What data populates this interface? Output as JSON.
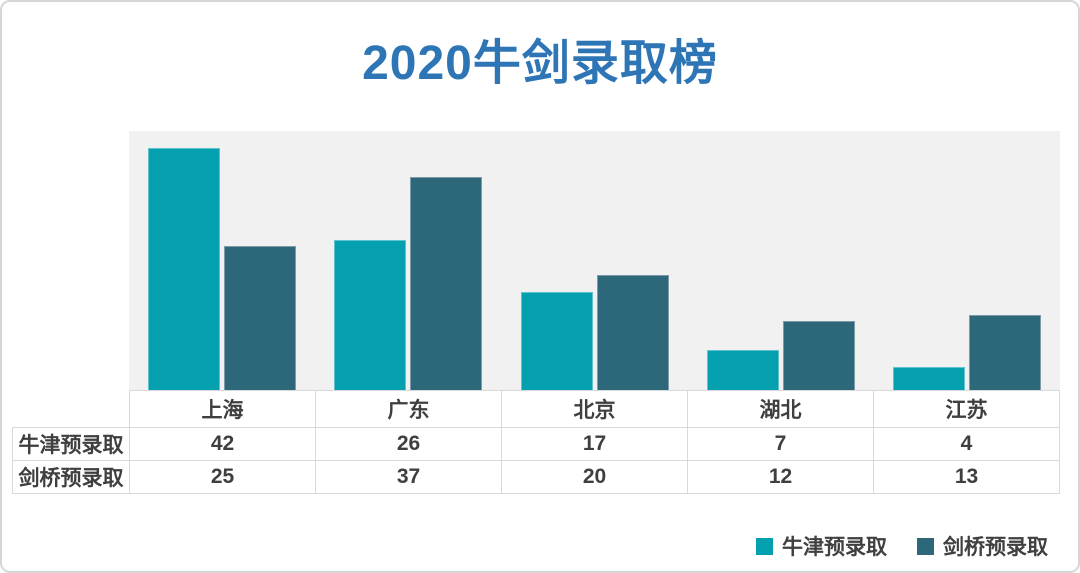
{
  "chart_data": {
    "type": "bar",
    "title": "2020牛剑录取榜",
    "title_color": "#2E75B6",
    "categories": [
      "上海",
      "广东",
      "北京",
      "湖北",
      "江苏"
    ],
    "series": [
      {
        "name": "牛津预录取",
        "values": [
          42,
          26,
          17,
          7,
          4
        ],
        "color": "#04A0AF",
        "edge_color": "#5FC2CC"
      },
      {
        "name": "剑桥预录取",
        "values": [
          25,
          37,
          20,
          12,
          13
        ],
        "color": "#2C6879",
        "edge_color": "#7E9AA9"
      }
    ],
    "xlabel": "",
    "ylabel": "",
    "ylim": [
      0,
      45
    ],
    "grid": false,
    "plot_background": "#F1F1F2",
    "legend_position": "bottom-right",
    "data_table_shown": true
  }
}
